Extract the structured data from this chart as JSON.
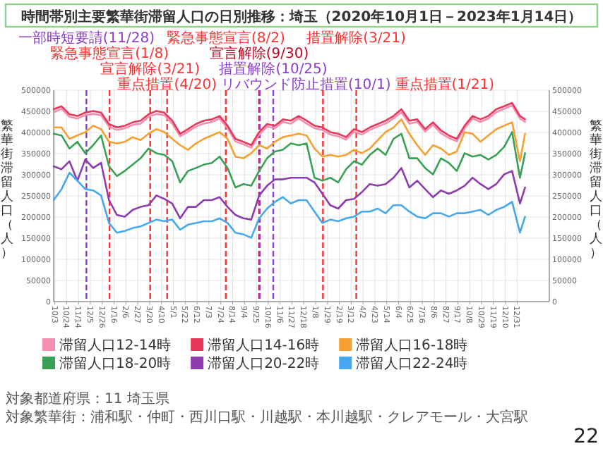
{
  "chart_data": {
    "type": "line",
    "title": "時間帯別主要繁華街滞留人口の日別推移：埼玉（2020年10月1日－2023年1月14日）",
    "ylabel": "繁華街滞留人口（人）",
    "y2label": "繁華街滞留人口（人）",
    "x": [
      "2020-10-01",
      "2020-10-15",
      "2020-10-29",
      "2020-11-12",
      "2020-11-26",
      "2020-12-10",
      "2020-12-24",
      "2021-01-07",
      "2021-01-21",
      "2021-02-04",
      "2021-02-18",
      "2021-03-04",
      "2021-03-18",
      "2021-04-01",
      "2021-04-15",
      "2021-04-29",
      "2021-05-13",
      "2021-05-27",
      "2021-06-10",
      "2021-06-24",
      "2021-07-08",
      "2021-07-22",
      "2021-08-05",
      "2021-08-19",
      "2021-09-02",
      "2021-09-16",
      "2021-09-30",
      "2021-10-14",
      "2021-10-28",
      "2021-11-11",
      "2021-11-25",
      "2021-12-09",
      "2021-12-23",
      "2022-01-06",
      "2022-01-20",
      "2022-02-03",
      "2022-02-17",
      "2022-03-03",
      "2022-03-17",
      "2022-03-31",
      "2022-04-14",
      "2022-04-28",
      "2022-05-12",
      "2022-05-26",
      "2022-06-09",
      "2022-06-23",
      "2022-07-07",
      "2022-07-21",
      "2022-08-04",
      "2022-08-18",
      "2022-09-01",
      "2022-09-15",
      "2022-09-29",
      "2022-10-13",
      "2022-10-27",
      "2022-11-10",
      "2022-11-24",
      "2022-12-08",
      "2022-12-22",
      "2023-01-05",
      "2023-01-14"
    ],
    "series": [
      {
        "name": "滞留人口12-14時",
        "color": "#f48fb1",
        "values": [
          448000,
          456000,
          437000,
          433000,
          441000,
          444000,
          441000,
          414000,
          406000,
          410000,
          418000,
          421000,
          437000,
          444000,
          441000,
          421000,
          391000,
          402000,
          414000,
          421000,
          425000,
          433000,
          410000,
          379000,
          372000,
          364000,
          395000,
          414000,
          410000,
          425000,
          421000,
          433000,
          421000,
          410000,
          406000,
          395000,
          391000,
          383000,
          402000,
          395000,
          406000,
          414000,
          421000,
          433000,
          448000,
          421000,
          425000,
          402000,
          418000,
          398000,
          387000,
          379000,
          410000,
          433000,
          425000,
          433000,
          448000,
          456000,
          464000,
          433000,
          425000
        ]
      },
      {
        "name": "滞留人口14-16時",
        "color": "#e8375a",
        "values": [
          455000,
          462000,
          443000,
          439000,
          447000,
          451000,
          447000,
          420000,
          412000,
          416000,
          424000,
          428000,
          443000,
          451000,
          447000,
          428000,
          397000,
          408000,
          420000,
          428000,
          431000,
          439000,
          416000,
          385000,
          378000,
          370000,
          401000,
          420000,
          416000,
          431000,
          428000,
          439000,
          428000,
          416000,
          412000,
          401000,
          397000,
          389000,
          408000,
          401000,
          412000,
          420000,
          428000,
          439000,
          455000,
          428000,
          431000,
          408000,
          424000,
          405000,
          393000,
          385000,
          416000,
          439000,
          431000,
          439000,
          455000,
          462000,
          470000,
          439000,
          431000
        ]
      },
      {
        "name": "滞留人口16-18時",
        "color": "#f5a030",
        "values": [
          412000,
          412000,
          385000,
          393000,
          401000,
          416000,
          408000,
          378000,
          374000,
          378000,
          389000,
          382000,
          397000,
          408000,
          401000,
          385000,
          370000,
          359000,
          374000,
          385000,
          393000,
          401000,
          385000,
          343000,
          339000,
          351000,
          370000,
          362000,
          378000,
          389000,
          393000,
          397000,
          393000,
          362000,
          343000,
          347000,
          343000,
          347000,
          359000,
          351000,
          362000,
          382000,
          401000,
          412000,
          431000,
          397000,
          370000,
          347000,
          370000,
          362000,
          347000,
          355000,
          401000,
          397000,
          378000,
          393000,
          408000,
          416000,
          424000,
          332000,
          397000
        ]
      },
      {
        "name": "滞留人口18-20時",
        "color": "#3aa055",
        "values": [
          397000,
          393000,
          362000,
          378000,
          351000,
          370000,
          393000,
          320000,
          297000,
          309000,
          324000,
          339000,
          362000,
          351000,
          347000,
          332000,
          282000,
          309000,
          316000,
          324000,
          328000,
          343000,
          316000,
          270000,
          278000,
          274000,
          309000,
          339000,
          355000,
          359000,
          374000,
          370000,
          374000,
          293000,
          286000,
          293000,
          282000,
          313000,
          332000,
          324000,
          347000,
          362000,
          347000,
          385000,
          397000,
          339000,
          339000,
          316000,
          301000,
          339000,
          328000,
          309000,
          351000,
          343000,
          347000,
          336000,
          347000,
          366000,
          401000,
          293000,
          351000
        ]
      },
      {
        "name": "滞留人口20-22時",
        "color": "#8e3bb0",
        "values": [
          320000,
          313000,
          332000,
          286000,
          336000,
          316000,
          328000,
          240000,
          205000,
          201000,
          217000,
          224000,
          228000,
          251000,
          243000,
          232000,
          197000,
          224000,
          224000,
          240000,
          240000,
          247000,
          224000,
          205000,
          197000,
          194000,
          251000,
          274000,
          289000,
          289000,
          293000,
          293000,
          293000,
          282000,
          255000,
          228000,
          220000,
          240000,
          243000,
          259000,
          278000,
          274000,
          278000,
          293000,
          316000,
          270000,
          286000,
          266000,
          247000,
          263000,
          255000,
          263000,
          274000,
          293000,
          278000,
          266000,
          278000,
          301000,
          309000,
          232000,
          270000
        ]
      },
      {
        "name": "滞留人口22-24時",
        "color": "#45a8f0",
        "values": [
          240000,
          266000,
          305000,
          286000,
          266000,
          263000,
          251000,
          186000,
          163000,
          167000,
          174000,
          178000,
          186000,
          194000,
          190000,
          194000,
          170000,
          182000,
          186000,
          190000,
          190000,
          197000,
          186000,
          163000,
          159000,
          151000,
          197000,
          220000,
          236000,
          247000,
          232000,
          240000,
          240000,
          213000,
          186000,
          194000,
          190000,
          197000,
          201000,
          213000,
          213000,
          220000,
          209000,
          228000,
          228000,
          213000,
          201000,
          197000,
          209000,
          209000,
          201000,
          209000,
          209000,
          213000,
          217000,
          205000,
          217000,
          224000,
          236000,
          163000,
          201000
        ]
      }
    ],
    "xlim": [
      "2020-10-01",
      "2023-02-26"
    ],
    "xticks": [
      {
        "value": "2020-10-03",
        "label": "10/3"
      },
      {
        "value": "2020-10-24",
        "label": "10/24"
      },
      {
        "value": "2020-11-14",
        "label": "11/14"
      },
      {
        "value": "2020-12-05",
        "label": "12/5"
      },
      {
        "value": "2020-12-26",
        "label": "12/26"
      },
      {
        "value": "2021-01-16",
        "label": "1/16"
      },
      {
        "value": "2021-02-06",
        "label": "2/6"
      },
      {
        "value": "2021-02-27",
        "label": "2/27"
      },
      {
        "value": "2021-03-20",
        "label": "3/20"
      },
      {
        "value": "2021-04-10",
        "label": "4/10"
      },
      {
        "value": "2021-05-01",
        "label": "5/1"
      },
      {
        "value": "2021-05-22",
        "label": "5/22"
      },
      {
        "value": "2021-06-12",
        "label": "6/12"
      },
      {
        "value": "2021-07-03",
        "label": "7/3"
      },
      {
        "value": "2021-07-24",
        "label": "7/24"
      },
      {
        "value": "2021-08-14",
        "label": "8/14"
      },
      {
        "value": "2021-09-04",
        "label": "9/4"
      },
      {
        "value": "2021-09-25",
        "label": "9/25"
      },
      {
        "value": "2021-10-16",
        "label": "10/16"
      },
      {
        "value": "2021-11-06",
        "label": "11/6"
      },
      {
        "value": "2021-11-27",
        "label": "11/27"
      },
      {
        "value": "2021-12-18",
        "label": "12/18"
      },
      {
        "value": "2022-01-08",
        "label": "1/8"
      },
      {
        "value": "2022-01-29",
        "label": "1/29"
      },
      {
        "value": "2022-02-19",
        "label": "2/19"
      },
      {
        "value": "2022-03-12",
        "label": "3/12"
      },
      {
        "value": "2022-04-02",
        "label": "4/2"
      },
      {
        "value": "2022-04-23",
        "label": "4/23"
      },
      {
        "value": "2022-05-14",
        "label": "5/14"
      },
      {
        "value": "2022-06-04",
        "label": "6/4"
      },
      {
        "value": "2022-06-25",
        "label": "6/25"
      },
      {
        "value": "2022-07-16",
        "label": "7/16"
      },
      {
        "value": "2022-08-06",
        "label": "8/6"
      },
      {
        "value": "2022-08-27",
        "label": "8/27"
      },
      {
        "value": "2022-09-17",
        "label": "9/17"
      },
      {
        "value": "2022-10-08",
        "label": "10/8"
      },
      {
        "value": "2022-10-29",
        "label": "10/29"
      },
      {
        "value": "2022-11-19",
        "label": "11/19"
      },
      {
        "value": "2022-12-10",
        "label": "12/10"
      },
      {
        "value": "2022-12-31",
        "label": "12/31"
      }
    ],
    "ylim": [
      0,
      500000
    ],
    "yticks": [
      0,
      50000,
      100000,
      150000,
      200000,
      250000,
      300000,
      350000,
      400000,
      450000,
      500000
    ],
    "y2lim": [
      0,
      500000
    ],
    "y2ticks": [
      0,
      50000,
      100000,
      150000,
      200000,
      250000,
      300000,
      350000,
      400000,
      450000,
      500000
    ],
    "grid": true,
    "legend": "bottom",
    "ref_lines": [
      {
        "axis": "x",
        "value": "2020-11-28",
        "label": "一部時短要請(11/28)",
        "color": "#8e3bd0",
        "line_style": "dashed"
      },
      {
        "axis": "x",
        "value": "2021-01-08",
        "label": "緊急事態宣言(1/8)",
        "color": "#ff3030",
        "line_style": "dashed"
      },
      {
        "axis": "x",
        "value": "2021-03-21",
        "label": "宣言解除(3/21)",
        "color": "#ff3030",
        "line_style": "dashed"
      },
      {
        "axis": "x",
        "value": "2021-04-20",
        "label": "重点措置(4/20)",
        "color": "#ff3030",
        "line_style": "dashed"
      },
      {
        "axis": "x",
        "value": "2021-08-02",
        "label": "緊急事態宣言(8/2)",
        "color": "#ff3030",
        "line_style": "dashed"
      },
      {
        "axis": "x",
        "value": "2021-09-30",
        "label": "宣言解除(9/30)",
        "color": "#c00020",
        "line_style": "dashed"
      },
      {
        "axis": "x",
        "value": "2021-10-01",
        "label": "リバウンド防止措置(10/1)",
        "color": "#8e3bd0",
        "line_style": "dashed"
      },
      {
        "axis": "x",
        "value": "2021-10-25",
        "label": "措置解除(10/25)",
        "color": "#8e3bd0",
        "line_style": "dashed"
      },
      {
        "axis": "x",
        "value": "2022-01-21",
        "label": "重点措置(1/21)",
        "color": "#ff3030",
        "line_style": "dashed"
      },
      {
        "axis": "x",
        "value": "2022-03-21",
        "label": "措置解除(3/21)",
        "color": "#ff3030",
        "line_style": "dashed"
      }
    ],
    "annotations": [
      "対象都道府県：11 埼玉県",
      "対象繁華街：浦和駅・仲町・西川口駅・川越駅・本川越駅・クレアモール・大宮駅",
      "22"
    ]
  }
}
